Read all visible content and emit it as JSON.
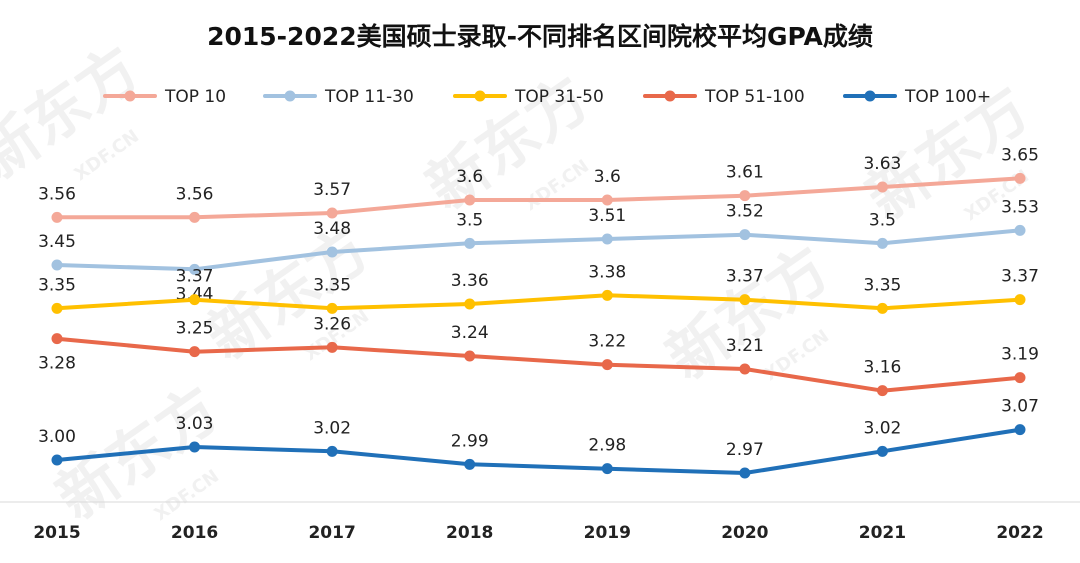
{
  "chart_data": {
    "type": "line",
    "title": "2015-2022美国硕士录取-不同排名区间院校平均GPA成绩",
    "categories": [
      "2015",
      "2016",
      "2017",
      "2018",
      "2019",
      "2020",
      "2021",
      "2022"
    ],
    "series": [
      {
        "name": "TOP 10",
        "color": "#F4A898",
        "values": [
          3.56,
          3.56,
          3.57,
          3.6,
          3.6,
          3.61,
          3.63,
          3.65
        ],
        "labels": [
          "3.56",
          "3.56",
          "3.57",
          "3.6",
          "3.6",
          "3.61",
          "3.63",
          "3.65"
        ]
      },
      {
        "name": "TOP 11-30",
        "color": "#A2C2E0",
        "values": [
          3.45,
          3.44,
          3.48,
          3.5,
          3.51,
          3.52,
          3.5,
          3.53
        ],
        "labels": [
          "3.45",
          "3.44",
          "3.48",
          "3.5",
          "3.51",
          "3.52",
          "3.5",
          "3.53"
        ]
      },
      {
        "name": "TOP 31-50",
        "color": "#FFC000",
        "values": [
          3.35,
          3.37,
          3.35,
          3.36,
          3.38,
          3.37,
          3.35,
          3.37
        ],
        "labels": [
          "3.35",
          "3.37",
          "3.35",
          "3.36",
          "3.38",
          "3.37",
          "3.35",
          "3.37"
        ]
      },
      {
        "name": "TOP 51-100",
        "color": "#E8684A",
        "values": [
          3.28,
          3.25,
          3.26,
          3.24,
          3.22,
          3.21,
          3.16,
          3.19
        ],
        "labels": [
          "3.28",
          "3.25",
          "3.26",
          "3.24",
          "3.22",
          "3.21",
          "3.16",
          "3.19"
        ]
      },
      {
        "name": "TOP 100+",
        "color": "#2070B8",
        "values": [
          3.0,
          3.03,
          3.02,
          2.99,
          2.98,
          2.97,
          3.02,
          3.07
        ],
        "labels": [
          "3.00",
          "3.03",
          "3.02",
          "2.99",
          "2.98",
          "2.97",
          "3.02",
          "3.07"
        ]
      }
    ],
    "xlabel": "",
    "ylabel": "",
    "legend": "top",
    "grid": false
  },
  "watermark": {
    "brand": "新东方",
    "domain": "XDF.CN"
  },
  "axis_color": "#d9d9d9"
}
